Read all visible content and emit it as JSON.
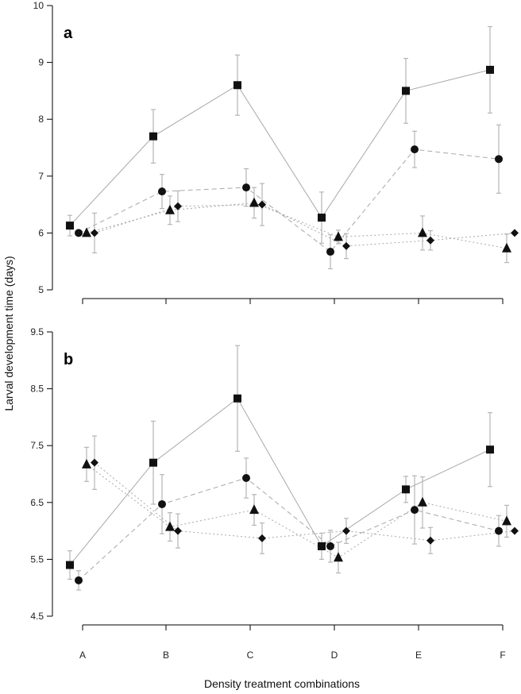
{
  "chart_data": {
    "type": "line",
    "ylabel": "Larval development time (days)",
    "xlabel": "Density treatment combinations",
    "categories": [
      "A",
      "B",
      "C",
      "D",
      "E",
      "F"
    ],
    "panels": [
      {
        "label": "a",
        "ylim": [
          5,
          10
        ],
        "yticks": [
          "5",
          "6",
          "7",
          "8",
          "9",
          "10"
        ],
        "series": [
          {
            "marker": "square",
            "line": "solid",
            "values": [
              6.13,
              7.7,
              8.6,
              6.27,
              8.5,
              8.87
            ],
            "err": [
              0.18,
              0.47,
              0.53,
              0.45,
              0.57,
              0.76
            ]
          },
          {
            "marker": "circle",
            "line": "dashed",
            "values": [
              6.0,
              6.73,
              6.8,
              5.67,
              7.47,
              7.3
            ],
            "err": [
              0.0,
              0.3,
              0.33,
              0.3,
              0.32,
              0.6
            ]
          },
          {
            "marker": "triangle",
            "line": "dotted",
            "values": [
              6.0,
              6.4,
              6.53,
              5.93,
              6.0,
              5.73
            ],
            "err": [
              0.0,
              0.25,
              0.27,
              0.12,
              0.3,
              0.25
            ]
          },
          {
            "marker": "diamond",
            "line": "dotted",
            "values": [
              6.0,
              6.47,
              6.5,
              5.77,
              5.87,
              6.0
            ],
            "err": [
              0.35,
              0.27,
              0.37,
              0.22,
              0.17,
              0.0
            ]
          }
        ]
      },
      {
        "label": "b",
        "ylim": [
          4.5,
          9.5
        ],
        "yticks": [
          "4.5",
          "5.5",
          "6.5",
          "7.5",
          "8.5",
          "9.5"
        ],
        "series": [
          {
            "marker": "square",
            "line": "solid",
            "values": [
              5.4,
              7.2,
              8.33,
              5.73,
              6.73,
              7.43
            ],
            "err": [
              0.25,
              0.73,
              0.93,
              0.23,
              0.23,
              0.65
            ]
          },
          {
            "marker": "circle",
            "line": "dashed",
            "values": [
              5.13,
              6.47,
              6.93,
              5.73,
              6.37,
              6.0
            ],
            "err": [
              0.17,
              0.52,
              0.35,
              0.28,
              0.6,
              0.27
            ]
          },
          {
            "marker": "triangle",
            "line": "dotted",
            "values": [
              7.17,
              6.07,
              6.37,
              5.53,
              6.5,
              6.17
            ],
            "err": [
              0.3,
              0.25,
              0.27,
              0.27,
              0.45,
              0.28
            ]
          },
          {
            "marker": "diamond",
            "line": "dotted",
            "values": [
              7.2,
              6.0,
              5.87,
              6.0,
              5.83,
              6.0
            ],
            "err": [
              0.47,
              0.3,
              0.27,
              0.22,
              0.23,
              0.0
            ]
          }
        ]
      }
    ]
  }
}
